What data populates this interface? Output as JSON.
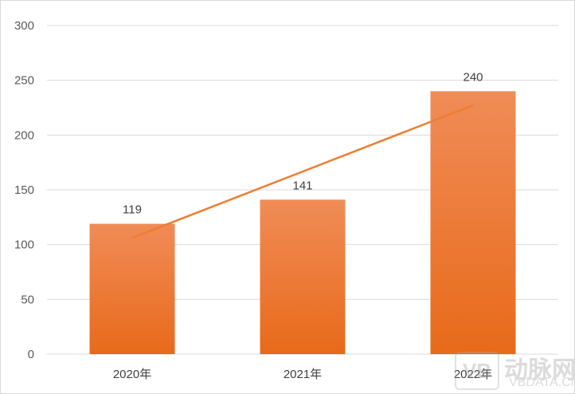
{
  "chart_data": {
    "type": "bar",
    "title": "",
    "xlabel": "",
    "ylabel": "",
    "categories": [
      "2020年",
      "2021年",
      "2022年"
    ],
    "values": [
      119,
      141,
      240
    ],
    "data_labels": [
      "119",
      "141",
      "240"
    ],
    "ylim": [
      0,
      300
    ],
    "yticks": [
      0,
      50,
      100,
      150,
      200,
      250,
      300
    ],
    "ytick_labels": [
      "0",
      "50",
      "100",
      "150",
      "200",
      "250",
      "300"
    ],
    "grid": true,
    "bar_color_top": "#F08C57",
    "bar_color_bottom": "#E86A1A",
    "trendline": {
      "type": "linear",
      "start": 106.17,
      "end": 227.17,
      "color": "#ED7D31"
    }
  },
  "watermark": {
    "logo": "VB",
    "cn": "动脉网",
    "en": "VBDATA.CN"
  }
}
